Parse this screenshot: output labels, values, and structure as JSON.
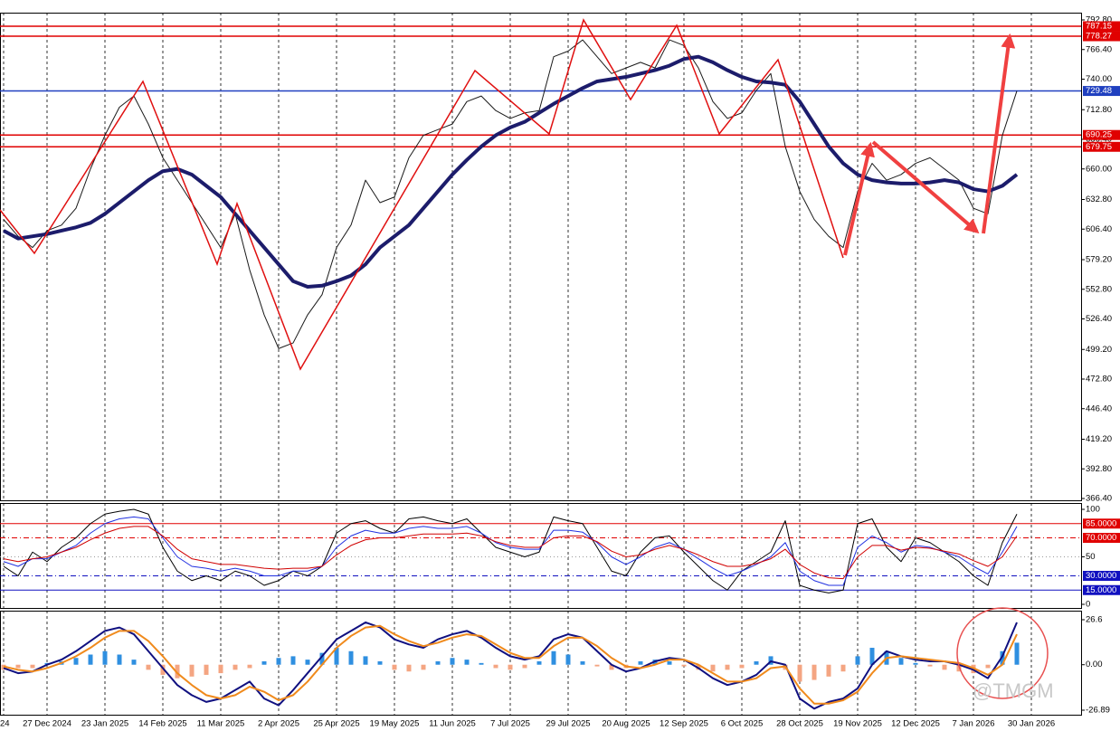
{
  "chart_data": [
    {
      "type": "line",
      "categories": [
        "24",
        null,
        null,
        "27 Dec 2024",
        null,
        null,
        null,
        "23 Jan 2025",
        null,
        null,
        null,
        "14 Feb 2025",
        null,
        null,
        null,
        "11 Mar 2025",
        null,
        null,
        null,
        "2 Apr 2025",
        null,
        null,
        null,
        "25 Apr 2025",
        null,
        null,
        null,
        "19 May 2025",
        null,
        null,
        null,
        "11 Jun 2025",
        null,
        null,
        null,
        "7 Jul 2025",
        null,
        null,
        null,
        "29 Jul 2025",
        null,
        null,
        null,
        "20 Aug 2025",
        null,
        null,
        null,
        "12 Sep 2025",
        null,
        null,
        null,
        "6 Oct 2025",
        null,
        null,
        null,
        "28 Oct 2025",
        null,
        null,
        null,
        "19 Nov 2025",
        null,
        null,
        null,
        "12 Dec 2025",
        null,
        null,
        null,
        "7 Jan 2026",
        null,
        null,
        null,
        "30 Jan 2026"
      ],
      "series": [
        {
          "color": "#1a1a1a",
          "width": 1,
          "values": [
            615,
            600,
            590,
            605,
            610,
            625,
            660,
            690,
            715,
            725,
            700,
            670,
            650,
            630,
            610,
            590,
            620,
            570,
            530,
            500,
            505,
            530,
            548,
            590,
            610,
            650,
            630,
            635,
            670,
            690,
            695,
            700,
            720,
            725,
            712,
            705,
            710,
            712,
            760,
            765,
            775,
            760,
            745,
            750,
            755,
            750,
            775,
            770,
            750,
            720,
            705,
            710,
            730,
            745,
            680,
            640,
            615,
            600,
            590,
            640,
            665,
            650,
            655,
            665,
            670,
            660,
            650,
            625,
            620,
            690,
            729.48,
            null
          ]
        },
        {
          "color": "#1c1c6b",
          "width": 4,
          "values": [
            605,
            598,
            600,
            602,
            605,
            608,
            612,
            620,
            630,
            640,
            650,
            658,
            660,
            655,
            645,
            635,
            620,
            605,
            590,
            575,
            560,
            555,
            556,
            560,
            565,
            575,
            590,
            600,
            610,
            625,
            640,
            655,
            668,
            680,
            690,
            697,
            702,
            710,
            718,
            725,
            732,
            738,
            740,
            742,
            745,
            748,
            752,
            758,
            760,
            755,
            748,
            742,
            738,
            737,
            735,
            720,
            700,
            680,
            665,
            655,
            650,
            648,
            647,
            647,
            648,
            650,
            648,
            642,
            640,
            645,
            655,
            null
          ]
        }
      ],
      "ylim": [
        366.4,
        792.8
      ],
      "yticks": [
        {
          "value": 792.8,
          "label": "792.80"
        },
        {
          "value": 766.4,
          "label": "766.40"
        },
        {
          "value": 740,
          "label": "740.00"
        },
        {
          "value": 712.8,
          "label": "712.80"
        },
        {
          "value": 686.4,
          "label": "686.40"
        },
        {
          "value": 660,
          "label": "660.00"
        },
        {
          "value": 632.8,
          "label": "632.80"
        },
        {
          "value": 606.4,
          "label": "606.40"
        },
        {
          "value": 579.2,
          "label": "579.20"
        },
        {
          "value": 552.8,
          "label": "552.80"
        },
        {
          "value": 526.4,
          "label": "526.40"
        },
        {
          "value": 499.2,
          "label": "499.20"
        },
        {
          "value": 472.8,
          "label": "472.80"
        },
        {
          "value": 446.4,
          "label": "446.40"
        },
        {
          "value": 419.2,
          "label": "419.20"
        },
        {
          "value": 392.8,
          "label": "392.80"
        },
        {
          "value": 366.4,
          "label": "366.40"
        }
      ],
      "levels": [
        {
          "value": 787.15,
          "color": "#e00000"
        },
        {
          "value": 778.27,
          "color": "#e00000"
        },
        {
          "value": 690.25,
          "color": "#e00000"
        },
        {
          "value": 679.75,
          "color": "#e00000"
        },
        {
          "value": 729.48,
          "color": "#2040c0"
        }
      ],
      "level_labels": true
    },
    {
      "type": "line",
      "series": [
        {
          "color": "#000000",
          "width": 1,
          "values": [
            40,
            30,
            55,
            45,
            60,
            70,
            85,
            95,
            98,
            100,
            95,
            60,
            35,
            25,
            30,
            25,
            35,
            30,
            20,
            25,
            35,
            30,
            40,
            75,
            85,
            88,
            80,
            75,
            90,
            92,
            88,
            85,
            90,
            75,
            60,
            55,
            50,
            55,
            92,
            88,
            85,
            60,
            35,
            30,
            55,
            70,
            72,
            55,
            40,
            25,
            15,
            35,
            45,
            55,
            88,
            20,
            15,
            12,
            15,
            85,
            90,
            60,
            45,
            70,
            65,
            55,
            45,
            30,
            20,
            65,
            95,
            null
          ]
        },
        {
          "color": "#2030e0",
          "width": 1,
          "values": [
            45,
            40,
            48,
            48,
            55,
            62,
            75,
            85,
            90,
            92,
            90,
            70,
            50,
            40,
            38,
            35,
            38,
            35,
            30,
            30,
            35,
            35,
            40,
            60,
            72,
            78,
            75,
            75,
            80,
            82,
            80,
            80,
            82,
            75,
            65,
            60,
            58,
            58,
            78,
            78,
            76,
            65,
            50,
            42,
            50,
            60,
            65,
            58,
            48,
            38,
            30,
            35,
            42,
            50,
            65,
            35,
            25,
            20,
            20,
            60,
            72,
            65,
            55,
            62,
            60,
            55,
            50,
            40,
            32,
            55,
            82,
            null
          ]
        },
        {
          "color": "#d00000",
          "width": 1,
          "values": [
            48,
            45,
            48,
            50,
            55,
            60,
            68,
            75,
            80,
            82,
            82,
            72,
            58,
            48,
            45,
            42,
            42,
            40,
            38,
            37,
            38,
            38,
            40,
            52,
            62,
            68,
            70,
            70,
            72,
            74,
            74,
            74,
            75,
            72,
            66,
            62,
            60,
            60,
            70,
            72,
            72,
            66,
            56,
            50,
            52,
            58,
            62,
            58,
            52,
            45,
            40,
            40,
            43,
            48,
            58,
            42,
            33,
            28,
            27,
            50,
            62,
            62,
            57,
            60,
            59,
            56,
            53,
            46,
            40,
            50,
            72,
            null
          ]
        }
      ],
      "ylim": [
        0,
        100
      ],
      "yticks": [
        100,
        {
          "value": 85,
          "label": "85.0000",
          "color": "#e00000",
          "dash": "solid"
        },
        {
          "value": 70,
          "label": "70.0000",
          "color": "#e00000",
          "dash": "dashdot"
        },
        50,
        {
          "value": 30,
          "label": "30.0000",
          "color": "#1010c0",
          "dash": "dashdot"
        },
        {
          "value": 15,
          "label": "15.0000",
          "color": "#1010c0",
          "dash": "solid"
        },
        0
      ],
      "levels": [
        {
          "value": 50,
          "color": "#999999",
          "dash": "dot"
        }
      ],
      "level_labels": false
    },
    {
      "type": "bar",
      "values": [
        -3,
        -2,
        -2,
        1,
        2,
        4,
        6,
        8,
        6,
        3,
        -3,
        -6,
        -8,
        -7,
        -6,
        -5,
        -3,
        -2,
        2,
        4,
        5,
        3,
        7,
        10,
        8,
        5,
        2,
        -3,
        -4,
        -3,
        2,
        4,
        3,
        1,
        -2,
        -3,
        -2,
        2,
        8,
        6,
        2,
        -1,
        -3,
        -2,
        2,
        3,
        2,
        -1,
        -3,
        -4,
        -3,
        -2,
        2,
        5,
        -3,
        -10,
        -9,
        -7,
        -4,
        5,
        10,
        8,
        4,
        1,
        -1,
        -3,
        -4,
        -5,
        -2,
        8,
        13,
        null
      ],
      "positive_color": "#2f8fe0",
      "negative_color": "#f4a582",
      "series": [
        {
          "color": "#101080",
          "width": 2,
          "values": [
            -2,
            -5,
            -4,
            0,
            3,
            8,
            14,
            20,
            22,
            18,
            8,
            -2,
            -12,
            -18,
            -22,
            -20,
            -15,
            -10,
            -20,
            -24,
            -15,
            -5,
            5,
            15,
            20,
            25,
            22,
            15,
            12,
            10,
            15,
            18,
            20,
            16,
            10,
            5,
            3,
            5,
            15,
            18,
            16,
            8,
            0,
            -4,
            -2,
            2,
            4,
            3,
            -2,
            -8,
            -12,
            -10,
            -6,
            2,
            0,
            -20,
            -26,
            -22,
            -20,
            -14,
            0,
            8,
            5,
            3,
            2,
            2,
            0,
            -3,
            -8,
            5,
            25,
            null
          ]
        },
        {
          "color": "#f08a1c",
          "width": 2,
          "values": [
            -1,
            -3,
            -4,
            -2,
            1,
            5,
            10,
            16,
            20,
            20,
            14,
            5,
            -5,
            -12,
            -18,
            -20,
            -18,
            -13,
            -16,
            -21,
            -18,
            -10,
            0,
            10,
            17,
            22,
            23,
            18,
            14,
            11,
            13,
            16,
            18,
            17,
            12,
            7,
            4,
            4,
            11,
            16,
            16,
            11,
            4,
            -1,
            -2,
            0,
            3,
            3,
            0,
            -5,
            -10,
            -10,
            -8,
            -2,
            -1,
            -14,
            -23,
            -23,
            -21,
            -16,
            -5,
            4,
            5,
            4,
            3,
            2,
            1,
            -2,
            -6,
            0,
            18,
            null
          ]
        }
      ],
      "ylim": [
        -26.89,
        26.6
      ],
      "yticks": [
        26.6,
        {
          "value": 0,
          "label": "0.00"
        },
        -26.89
      ]
    }
  ],
  "watermark": "@TMGM"
}
